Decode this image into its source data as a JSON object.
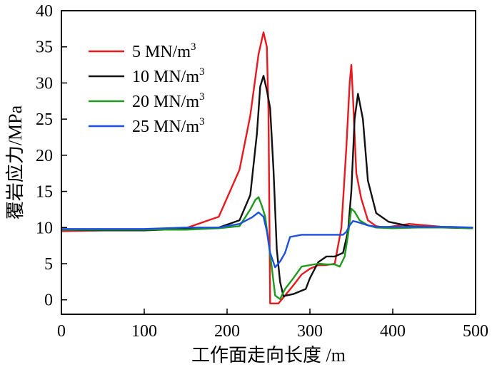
{
  "chart_data": {
    "type": "line",
    "title": "",
    "xlabel": "工作面走向长度 /m",
    "ylabel": "覆岩应力/MPa",
    "xlim": [
      0,
      500
    ],
    "ylim": [
      -2,
      40
    ],
    "xticks": [
      0,
      100,
      200,
      300,
      400,
      500
    ],
    "yticks": [
      0,
      5,
      10,
      15,
      20,
      25,
      30,
      35,
      40
    ],
    "legend_position": "top-left",
    "series": [
      {
        "name": "5 MN/m³",
        "name_base": "5 MN/m",
        "name_sup": "3",
        "color": "#e8191f",
        "x": [
          0,
          50,
          100,
          150,
          190,
          215,
          228,
          238,
          244,
          248,
          250,
          252,
          256,
          262,
          270,
          280,
          290,
          300,
          310,
          320,
          330,
          338,
          344,
          348,
          350,
          352,
          356,
          362,
          370,
          380,
          390,
          420,
          460,
          497
        ],
        "y": [
          9.5,
          9.6,
          9.7,
          9.9,
          11.5,
          18.0,
          25.5,
          34.0,
          37.0,
          35.0,
          26.0,
          -0.5,
          -0.5,
          -0.5,
          0.6,
          2.0,
          3.5,
          4.3,
          4.8,
          4.8,
          5.0,
          10.0,
          21.0,
          30.0,
          32.5,
          28.0,
          17.5,
          14.0,
          11.0,
          10.2,
          10.0,
          10.5,
          10.1,
          9.9
        ]
      },
      {
        "name": "10 MN/m³",
        "name_base": "10 MN/m",
        "name_sup": "3",
        "color": "#111111",
        "x": [
          0,
          50,
          100,
          150,
          190,
          215,
          228,
          236,
          240,
          244,
          248,
          252,
          256,
          260,
          264,
          268,
          280,
          295,
          300,
          310,
          320,
          330,
          340,
          346,
          350,
          354,
          358,
          364,
          370,
          380,
          395,
          420,
          460,
          497
        ],
        "y": [
          9.7,
          9.6,
          9.6,
          9.8,
          10.0,
          11.0,
          14.5,
          23.0,
          29.5,
          31.0,
          29.0,
          26.5,
          18.0,
          7.0,
          2.5,
          0.5,
          0.8,
          1.5,
          3.0,
          5.2,
          6.0,
          6.0,
          6.5,
          9.5,
          15.0,
          25.0,
          28.5,
          25.0,
          16.5,
          12.0,
          10.8,
          10.2,
          10.0,
          9.9
        ]
      },
      {
        "name": "20 MN/m³",
        "name_base": "20 MN/m",
        "name_sup": "3",
        "color": "#1f9a1f",
        "x": [
          0,
          50,
          100,
          150,
          190,
          215,
          228,
          234,
          238,
          242,
          246,
          250,
          254,
          258,
          264,
          270,
          280,
          290,
          300,
          310,
          320,
          330,
          336,
          342,
          346,
          350,
          354,
          360,
          370,
          380,
          400,
          430,
          470,
          497
        ],
        "y": [
          9.7,
          9.7,
          9.7,
          9.7,
          9.9,
          10.2,
          12.5,
          13.8,
          14.2,
          13.0,
          11.5,
          8.0,
          4.5,
          0.6,
          0.1,
          1.5,
          3.0,
          4.6,
          4.8,
          5.0,
          4.9,
          4.9,
          4.6,
          6.0,
          9.0,
          12.6,
          12.2,
          11.0,
          10.3,
          10.0,
          9.9,
          10.0,
          10.0,
          9.9
        ]
      },
      {
        "name": "25 MN/m³",
        "name_base": "25 MN/m",
        "name_sup": "3",
        "color": "#1a4fe0",
        "x": [
          0,
          50,
          100,
          150,
          190,
          215,
          230,
          238,
          244,
          248,
          252,
          258,
          264,
          270,
          276,
          290,
          310,
          330,
          340,
          344,
          348,
          352,
          356,
          362,
          370,
          380,
          400,
          430,
          470,
          497
        ],
        "y": [
          9.8,
          9.8,
          9.8,
          10.0,
          10.0,
          10.5,
          11.4,
          12.1,
          11.5,
          9.5,
          6.5,
          4.5,
          5.3,
          6.5,
          8.7,
          9.0,
          9.0,
          9.0,
          9.0,
          9.4,
          10.3,
          10.9,
          10.8,
          10.6,
          10.3,
          10.1,
          10.1,
          10.1,
          10.1,
          10.0
        ]
      }
    ]
  }
}
